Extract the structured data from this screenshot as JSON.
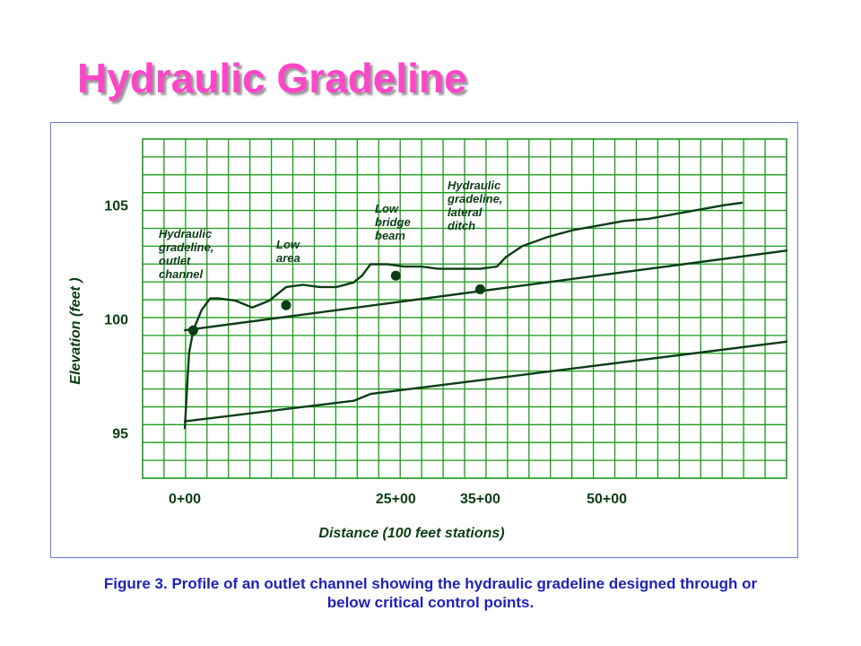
{
  "slide": {
    "title": "Hydraulic Gradeline"
  },
  "chart_data": {
    "type": "line",
    "title": "",
    "xlabel": "Distance (100 feet stations)",
    "ylabel": "Elevation (feet )",
    "x_ticks": [
      {
        "value": 0,
        "label": "0+00"
      },
      {
        "value": 25,
        "label": "25+00"
      },
      {
        "value": 35,
        "label": "35+00"
      },
      {
        "value": 50,
        "label": "50+00"
      }
    ],
    "y_ticks": [
      {
        "value": 95,
        "label": "95"
      },
      {
        "value": 100,
        "label": "100"
      },
      {
        "value": 105,
        "label": "105"
      }
    ],
    "xlim": [
      -5,
      71.3
    ],
    "ylim": [
      93,
      107.9
    ],
    "grid": true,
    "colors": {
      "grid": "#1a9a1a",
      "line": "#0b3d16",
      "axis_text": "#0b3d16",
      "title": "#ff46c8",
      "caption": "#1f22b8"
    },
    "series": [
      {
        "points": [
          [
            0,
            95.2
          ],
          [
            0.2,
            96.5
          ],
          [
            0.5,
            98.5
          ],
          [
            1,
            99.5
          ],
          [
            2,
            100.4
          ],
          [
            3,
            100.9
          ],
          [
            4,
            100.9
          ],
          [
            6,
            100.8
          ],
          [
            8,
            100.5
          ],
          [
            10,
            100.8
          ],
          [
            12,
            101.4
          ],
          [
            14,
            101.5
          ],
          [
            16,
            101.4
          ],
          [
            18,
            101.4
          ],
          [
            20,
            101.6
          ],
          [
            21,
            101.9
          ],
          [
            22,
            102.4
          ],
          [
            24,
            102.4
          ],
          [
            26,
            102.3
          ],
          [
            28,
            102.3
          ],
          [
            30,
            102.2
          ],
          [
            32,
            102.2
          ],
          [
            35,
            102.2
          ],
          [
            37,
            102.3
          ],
          [
            38,
            102.7
          ],
          [
            40,
            103.2
          ],
          [
            43,
            103.6
          ],
          [
            46,
            103.9
          ],
          [
            49,
            104.1
          ],
          [
            52,
            104.3
          ],
          [
            55,
            104.4
          ],
          [
            58,
            104.6
          ],
          [
            61,
            104.8
          ],
          [
            64,
            105.0
          ],
          [
            66,
            105.1
          ]
        ]
      },
      {
        "points": [
          [
            0,
            99.5
          ],
          [
            71.3,
            103.0
          ]
        ]
      },
      {
        "points": [
          [
            0,
            95.5
          ],
          [
            20,
            96.4
          ],
          [
            22,
            96.7
          ],
          [
            71.3,
            99.0
          ]
        ]
      }
    ],
    "control_points": [
      [
        1,
        99.5
      ],
      [
        12,
        100.6
      ],
      [
        25,
        101.9
      ],
      [
        35,
        101.3
      ]
    ],
    "annotations": [
      {
        "lines": [
          "Hydraulic",
          "gradeline,",
          "outlet",
          "channel"
        ]
      },
      {
        "lines": [
          "Low",
          "area"
        ]
      },
      {
        "lines": [
          "Low",
          "bridge",
          "beam"
        ]
      },
      {
        "lines": [
          "Hydraulic",
          "gradeline,",
          "lateral",
          "ditch"
        ]
      }
    ]
  },
  "caption": "Figure 3. Profile of an outlet channel showing the hydraulic gradeline designed through or below critical control points."
}
